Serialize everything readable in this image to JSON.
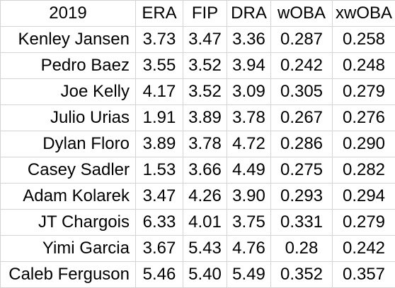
{
  "table": {
    "headers": [
      "2019",
      "ERA",
      "FIP",
      "DRA",
      "wOBA",
      "xwOBA"
    ],
    "rows": [
      [
        "Kenley Jansen",
        "3.73",
        "3.47",
        "3.36",
        "0.287",
        "0.258"
      ],
      [
        "Pedro Baez",
        "3.55",
        "3.52",
        "3.94",
        "0.242",
        "0.248"
      ],
      [
        "Joe Kelly",
        "4.17",
        "3.52",
        "3.09",
        "0.305",
        "0.279"
      ],
      [
        "Julio Urias",
        "1.91",
        "3.89",
        "3.78",
        "0.267",
        "0.276"
      ],
      [
        "Dylan Floro",
        "3.89",
        "3.78",
        "4.72",
        "0.286",
        "0.290"
      ],
      [
        "Casey Sadler",
        "1.53",
        "3.66",
        "4.49",
        "0.275",
        "0.282"
      ],
      [
        "Adam Kolarek",
        "3.47",
        "4.26",
        "3.90",
        "0.293",
        "0.294"
      ],
      [
        "JT Chargois",
        "6.33",
        "4.01",
        "3.75",
        "0.331",
        "0.279"
      ],
      [
        "Yimi Garcia",
        "3.67",
        "5.43",
        "4.76",
        "0.28",
        "0.242"
      ],
      [
        "Caleb Ferguson",
        "5.46",
        "5.40",
        "5.49",
        "0.352",
        "0.357"
      ]
    ]
  },
  "colors": {
    "gridline": "#d4d4d4",
    "text": "#000000",
    "background": "#ffffff"
  }
}
